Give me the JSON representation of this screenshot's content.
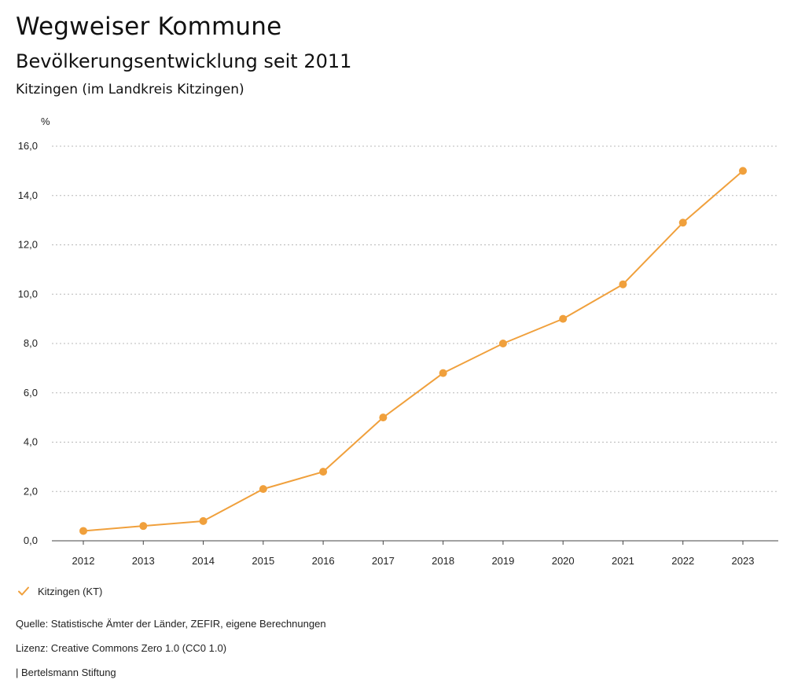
{
  "header": {
    "title": "Wegweiser Kommune",
    "subtitle": "Bevölkerungsentwicklung seit 2011",
    "region": "Kitzingen (im Landkreis Kitzingen)"
  },
  "legend": {
    "label": "Kitzingen (KT)",
    "icon": "check-icon"
  },
  "footer": {
    "source": "Quelle: Statistische Ämter der Länder, ZEFIR, eigene Berechnungen",
    "license": "Lizenz: Creative Commons Zero 1.0 (CC0 1.0)",
    "brand": "| Bertelsmann Stiftung"
  },
  "colors": {
    "series": "#F0A03C",
    "grid": "#b8b8b8",
    "axis": "#444444"
  },
  "chart_data": {
    "type": "line",
    "title": "",
    "xlabel": "",
    "ylabel": "%",
    "categories": [
      "2012",
      "2013",
      "2014",
      "2015",
      "2016",
      "2017",
      "2018",
      "2019",
      "2020",
      "2021",
      "2022",
      "2023"
    ],
    "ylim": [
      0,
      16
    ],
    "yticks": [
      "0,0",
      "2,0",
      "4,0",
      "6,0",
      "8,0",
      "10,0",
      "12,0",
      "14,0",
      "16,0"
    ],
    "grid": true,
    "legend_position": "bottom-left",
    "series": [
      {
        "name": "Kitzingen (KT)",
        "values": [
          0.4,
          0.6,
          0.8,
          2.1,
          2.8,
          5.0,
          6.8,
          8.0,
          9.0,
          10.4,
          12.9,
          15.0
        ]
      }
    ]
  }
}
